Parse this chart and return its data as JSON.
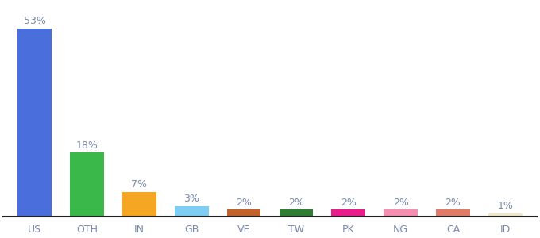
{
  "categories": [
    "US",
    "OTH",
    "IN",
    "GB",
    "VE",
    "TW",
    "PK",
    "NG",
    "CA",
    "ID"
  ],
  "values": [
    53,
    18,
    7,
    3,
    2,
    2,
    2,
    2,
    2,
    1
  ],
  "labels": [
    "53%",
    "18%",
    "7%",
    "3%",
    "2%",
    "2%",
    "2%",
    "2%",
    "2%",
    "1%"
  ],
  "colors": [
    "#4a6fdc",
    "#3ab84a",
    "#f5a623",
    "#7ecef4",
    "#c0622a",
    "#2e7d32",
    "#e91e8c",
    "#f48fb1",
    "#e07b6a",
    "#f0e6c8"
  ],
  "ylim": [
    0,
    60
  ],
  "background_color": "#ffffff",
  "label_fontsize": 9,
  "tick_fontsize": 9,
  "label_color": "#7a8aaa",
  "tick_color": "#7a8aaa",
  "spine_color": "#222222"
}
